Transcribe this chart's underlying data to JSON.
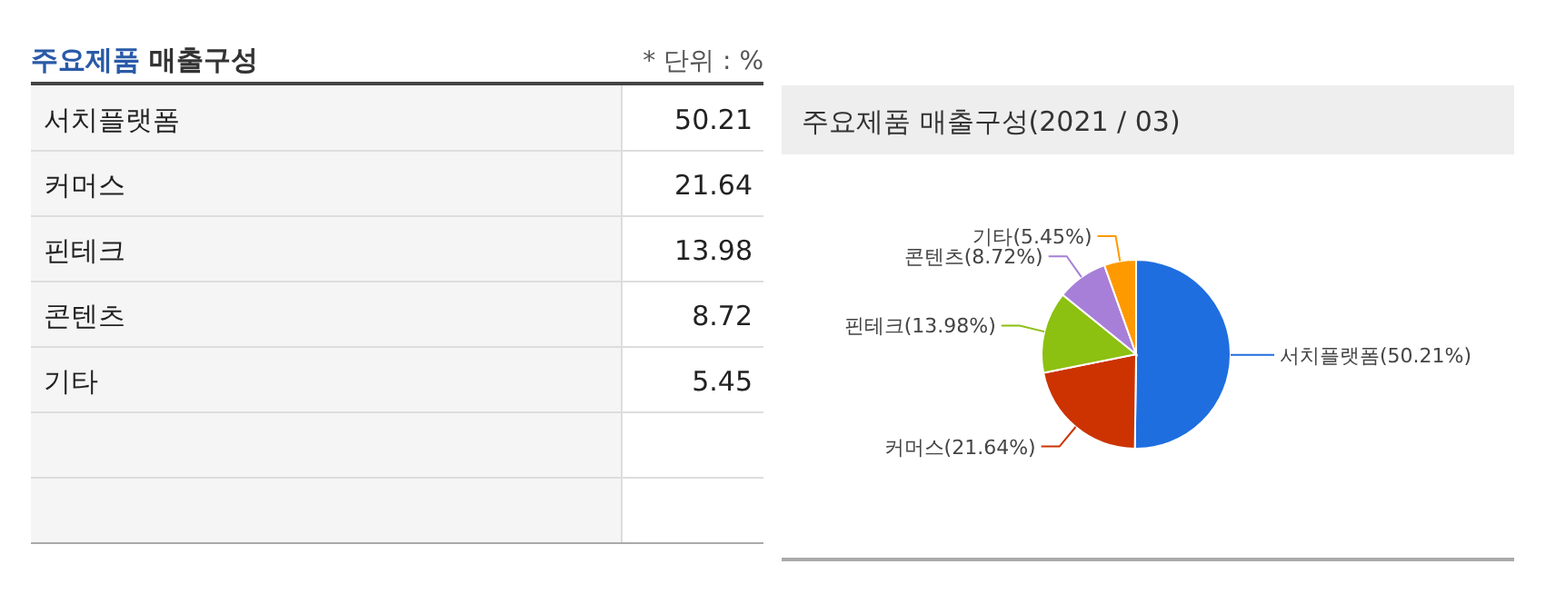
{
  "chart_data": [
    {
      "type": "other",
      "title": "주요제품 매출구성",
      "annotations": [
        "* 단위 : %"
      ],
      "categories": [
        "서치플랫폼",
        "커머스",
        "핀테크",
        "콘텐츠",
        "기타"
      ],
      "values": [
        50.21,
        21.64,
        13.98,
        8.72,
        5.45
      ],
      "data_labels": true
    },
    {
      "type": "pie",
      "title": "주요제품 매출구성(2021 / 03)",
      "categories": [
        "서치플랫폼",
        "커머스",
        "핀테크",
        "콘텐츠",
        "기타"
      ],
      "values": [
        50.21,
        21.64,
        13.98,
        8.72,
        5.45
      ],
      "colors": [
        "#1f6ee0",
        "#cc3300",
        "#8cc011",
        "#a77fd8",
        "#ff9900"
      ],
      "value_labels": [
        "(50.21%)",
        "(21.64%)",
        "(13.98%)",
        "(8.72%)",
        "(5.45%)"
      ]
    }
  ]
}
